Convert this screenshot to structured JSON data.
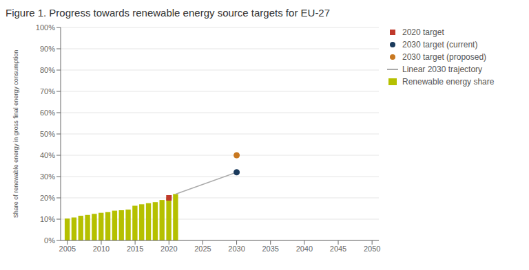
{
  "chart_data": {
    "type": "bar",
    "title": "Figure 1. Progress towards renewable energy source targets for EU-27",
    "y_label": "Share of renewable energy in gross final energy consumption",
    "xlim": [
      2004,
      2051
    ],
    "xticks": [
      2005,
      2010,
      2015,
      2020,
      2025,
      2030,
      2035,
      2040,
      2045,
      2050
    ],
    "ylim": [
      0,
      1.0
    ],
    "yticks": [
      {
        "value": 0.0,
        "label": "0%"
      },
      {
        "value": 0.1,
        "label": "10%"
      },
      {
        "value": 0.2,
        "label": "20%"
      },
      {
        "value": 0.3,
        "label": "30%"
      },
      {
        "value": 0.4,
        "label": "40%"
      },
      {
        "value": 0.5,
        "label": "50%"
      },
      {
        "value": 0.6,
        "label": "60%"
      },
      {
        "value": 0.7,
        "label": "70%"
      },
      {
        "value": 0.8,
        "label": "80%"
      },
      {
        "value": 0.9,
        "label": "90%"
      },
      {
        "value": 1.0,
        "label": "100%"
      }
    ],
    "grid": true,
    "legend": "upper right",
    "series": [
      {
        "name": "2020 target",
        "type": "scatter",
        "marker": "square",
        "color": "#c0392b",
        "x": [
          2020
        ],
        "values": [
          0.2
        ]
      },
      {
        "name": "2030 target (current)",
        "type": "scatter",
        "marker": "circle",
        "color": "#1a3a5c",
        "x": [
          2030
        ],
        "values": [
          0.32
        ]
      },
      {
        "name": "2030 target (proposed)",
        "type": "scatter",
        "marker": "circle",
        "color": "#c87820",
        "x": [
          2030
        ],
        "values": [
          0.4
        ]
      },
      {
        "name": "Linear 2030 trajectory",
        "type": "line",
        "color": "#aaaaaa",
        "x": [
          2021,
          2030
        ],
        "values": [
          0.218,
          0.32
        ]
      },
      {
        "name": "Renewable energy share",
        "type": "bar",
        "color": "#b5c000",
        "x": [
          2005,
          2006,
          2007,
          2008,
          2009,
          2010,
          2011,
          2012,
          2013,
          2014,
          2015,
          2016,
          2017,
          2018,
          2019,
          2020,
          2021
        ],
        "values": [
          0.103,
          0.108,
          0.116,
          0.12,
          0.125,
          0.13,
          0.133,
          0.14,
          0.142,
          0.145,
          0.163,
          0.17,
          0.175,
          0.18,
          0.19,
          0.202,
          0.218
        ]
      }
    ]
  }
}
